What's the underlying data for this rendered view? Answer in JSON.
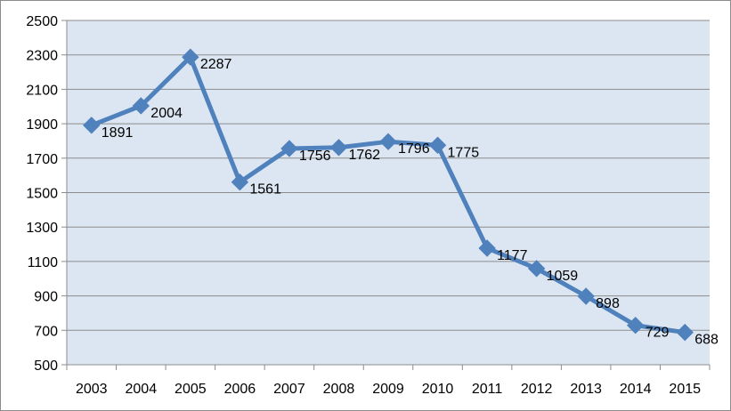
{
  "chart_data": {
    "type": "line",
    "categories": [
      "2003",
      "2004",
      "2005",
      "2006",
      "2007",
      "2008",
      "2009",
      "2010",
      "2011",
      "2012",
      "2013",
      "2014",
      "2015"
    ],
    "series": [
      {
        "values": [
          1891,
          2004,
          2287,
          1561,
          1756,
          1762,
          1796,
          1775,
          1177,
          1059,
          898,
          729,
          688
        ]
      }
    ],
    "data_labels": [
      "1891",
      "2004",
      "2287",
      "1561",
      "1756",
      "1762",
      "1796",
      "1775",
      "1177",
      "1059",
      "898",
      "729",
      "688"
    ],
    "yticks": [
      "500",
      "700",
      "900",
      "1100",
      "1300",
      "1500",
      "1700",
      "1900",
      "2100",
      "2300",
      "2500"
    ],
    "ylim": [
      500,
      2500
    ],
    "title": "",
    "xlabel": "",
    "ylabel": "",
    "grid": true,
    "legend": "none",
    "colors": {
      "line": "#4F81BD",
      "plot_background": "#DCE6F2",
      "gridline": "#8C8C8C",
      "axis": "#8C8C8C"
    }
  }
}
